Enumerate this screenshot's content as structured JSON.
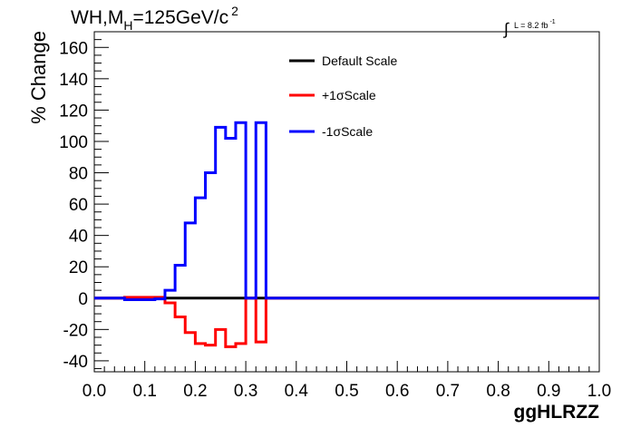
{
  "chart_data": {
    "type": "line",
    "title": {
      "text": "WH,M",
      "subscript": "H",
      "rest": "=125GeV/c",
      "superscript": "2"
    },
    "luminosity": {
      "integral": "∫",
      "text": "L = 8.2 fb",
      "superscript": "-1"
    },
    "xlabel": "ggHLRZZ",
    "ylabel": "% Change",
    "xlim": [
      0.0,
      1.0
    ],
    "ylim": [
      -47,
      170
    ],
    "x_ticks": [
      "0.0",
      "0.1",
      "0.2",
      "0.3",
      "0.4",
      "0.5",
      "0.6",
      "0.7",
      "0.8",
      "0.9",
      "1.0"
    ],
    "y_ticks": [
      "-40",
      "-20",
      "0",
      "20",
      "40",
      "60",
      "80",
      "100",
      "120",
      "140",
      "160"
    ],
    "bin_edges": [
      0.0,
      0.02,
      0.04,
      0.06,
      0.08,
      0.1,
      0.12,
      0.14,
      0.16,
      0.18,
      0.2,
      0.22,
      0.24,
      0.26,
      0.28,
      0.3,
      0.32,
      0.34,
      0.36,
      1.0
    ],
    "series": [
      {
        "name": "Default Scale",
        "color": "#000000",
        "values": [
          0,
          0,
          0,
          0,
          0,
          0,
          0,
          0,
          0,
          0,
          0,
          0,
          0,
          0,
          0,
          0,
          0,
          0,
          0
        ]
      },
      {
        "name": "+1σScale",
        "color": "#ff0000",
        "values": [
          0,
          0,
          0,
          0.5,
          0.5,
          0.5,
          0.5,
          -3,
          -12,
          -22,
          -29,
          -30,
          -20,
          -31,
          -29,
          0,
          -28,
          0,
          0
        ]
      },
      {
        "name": "-1σScale",
        "color": "#0000ff",
        "values": [
          0,
          0,
          0,
          -1,
          -1,
          -1,
          -0.5,
          5,
          21,
          48,
          64,
          80,
          109,
          102,
          112,
          0,
          112,
          0,
          0
        ]
      }
    ],
    "grid": false,
    "legend_position": "top-center"
  }
}
